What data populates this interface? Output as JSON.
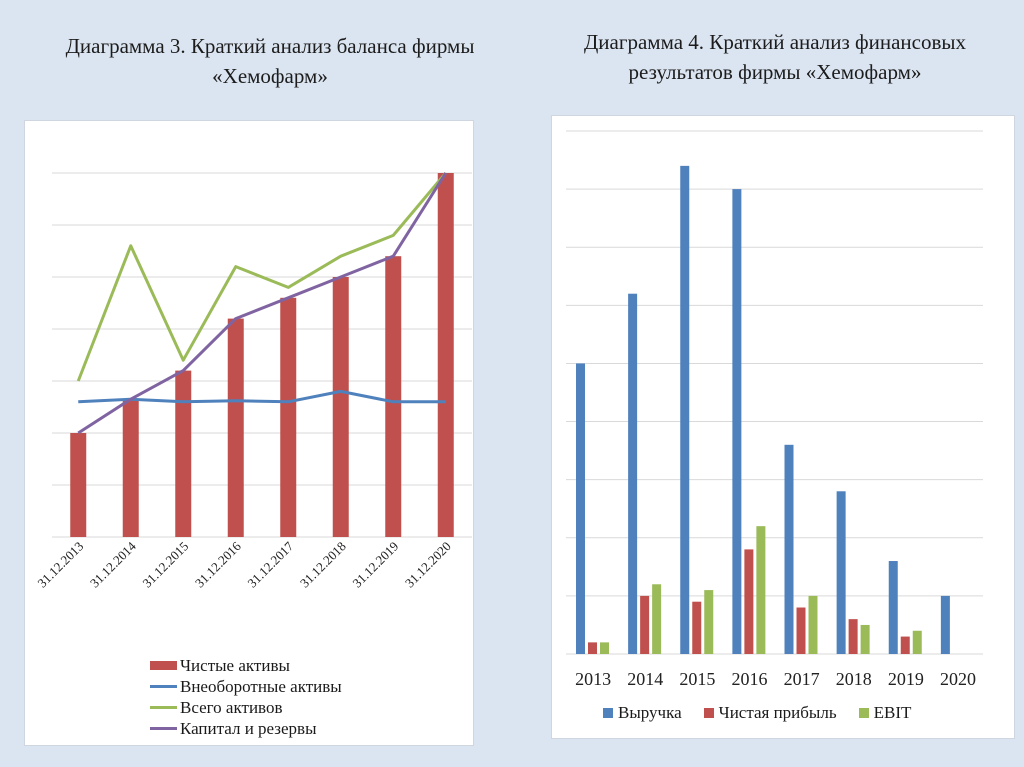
{
  "page": {
    "background": "#dbe5f1"
  },
  "left_chart": {
    "title": "Диаграмма 3. Краткий анализ баланса фирмы «Хемофарм»",
    "title_line1": "Диаграмма 3. Краткий анализ баланса фирмы",
    "title_line2": "«Хемофарм»",
    "legend": [
      {
        "label": "Чистые активы",
        "color": "#c0504d",
        "kind": "bar"
      },
      {
        "label": "Внеоборотные активы",
        "color": "#4f81bd",
        "kind": "line"
      },
      {
        "label": "Всего активов",
        "color": "#9bbb59",
        "kind": "line"
      },
      {
        "label": "Капитал и резервы",
        "color": "#8064a2",
        "kind": "line"
      }
    ]
  },
  "right_chart": {
    "title": "Диаграмма 4. Краткий анализ финансовых результатов фирмы «Хемофарм»",
    "title_line1": "Диаграмма 4. Краткий анализ финансовых",
    "title_line2": "результатов фирмы «Хемофарм»",
    "legend": [
      {
        "label": "Выручка",
        "color": "#4f81bd"
      },
      {
        "label": "Чистая прибыль",
        "color": "#c0504d"
      },
      {
        "label": "EBIT",
        "color": "#9bbb59"
      }
    ]
  },
  "chart_data": [
    {
      "type": "bar",
      "title": "Диаграмма 3. Краткий анализ баланса фирмы «Хемофарм»",
      "xlabel": "",
      "ylabel": "",
      "categories": [
        "31.12.2013",
        "31.12.2014",
        "31.12.2015",
        "31.12.2016",
        "31.12.2017",
        "31.12.2018",
        "31.12.2019",
        "31.12.2020"
      ],
      "ylim": [
        0,
        7
      ],
      "y_ticks_labeled": false,
      "grid": true,
      "legend_position": "bottom",
      "note": "Values in relative gridline units (axis has no numeric labels); combo chart: bars + lines",
      "series": [
        {
          "name": "Чистые активы",
          "kind": "bar",
          "color": "#c0504d",
          "values": [
            2.0,
            2.65,
            3.2,
            4.2,
            4.6,
            5.0,
            5.4,
            7.0
          ]
        },
        {
          "name": "Внеоборотные активы",
          "kind": "line",
          "color": "#4f81bd",
          "values": [
            2.6,
            2.65,
            2.6,
            2.62,
            2.6,
            2.8,
            2.6,
            2.6
          ]
        },
        {
          "name": "Всего активов",
          "kind": "line",
          "color": "#9bbb59",
          "values": [
            3.0,
            5.6,
            3.4,
            5.2,
            4.8,
            5.4,
            5.8,
            7.0
          ]
        },
        {
          "name": "Капитал и резервы",
          "kind": "line",
          "color": "#8064a2",
          "values": [
            2.0,
            2.65,
            3.2,
            4.2,
            4.6,
            5.0,
            5.4,
            7.0
          ]
        }
      ]
    },
    {
      "type": "bar",
      "title": "Диаграмма 4. Краткий анализ финансовых результатов фирмы «Хемофарм»",
      "xlabel": "",
      "ylabel": "",
      "categories": [
        "2013",
        "2014",
        "2015",
        "2016",
        "2017",
        "2018",
        "2019",
        "2020"
      ],
      "ylim": [
        0,
        9
      ],
      "y_ticks_labeled": false,
      "grid": true,
      "legend_position": "bottom",
      "note": "Values in relative gridline units (axis has no numeric labels)",
      "series": [
        {
          "name": "Выручка",
          "color": "#4f81bd",
          "values": [
            5.0,
            6.2,
            8.4,
            8.0,
            3.6,
            2.8,
            1.6,
            1.0
          ]
        },
        {
          "name": "Чистая прибыль",
          "color": "#c0504d",
          "values": [
            0.2,
            1.0,
            0.9,
            1.8,
            0.8,
            0.6,
            0.3,
            0
          ]
        },
        {
          "name": "EBIT",
          "color": "#9bbb59",
          "values": [
            0.2,
            1.2,
            1.1,
            2.2,
            1.0,
            0.5,
            0.4,
            0
          ]
        }
      ]
    }
  ]
}
